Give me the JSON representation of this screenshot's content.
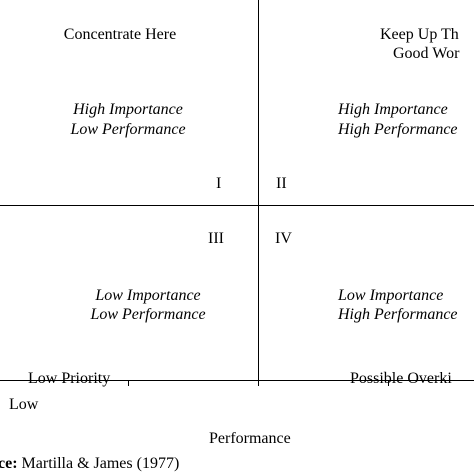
{
  "quadrants": {
    "top_left": {
      "heading": "Concentrate Here",
      "line1": "High Importance",
      "line2": "Low Performance",
      "numeral": "I"
    },
    "top_right": {
      "heading_line1": "Keep Up Th",
      "heading_line2": "Good Wor",
      "line1": "High Importance",
      "line2": "High Performance",
      "numeral": "II"
    },
    "bottom_left": {
      "numeral": "III",
      "line1": "Low Importance",
      "line2": "Low Performance",
      "footer": "Low Priority"
    },
    "bottom_right": {
      "numeral": "IV",
      "line1": "Low Importance",
      "line2": "High Performance",
      "footer": "Possible Overki"
    }
  },
  "axis": {
    "x_low_label": "Low",
    "x_title": "Performance"
  },
  "source": {
    "prefix": "ce:",
    "citation": "Martilla & James (1977)"
  }
}
